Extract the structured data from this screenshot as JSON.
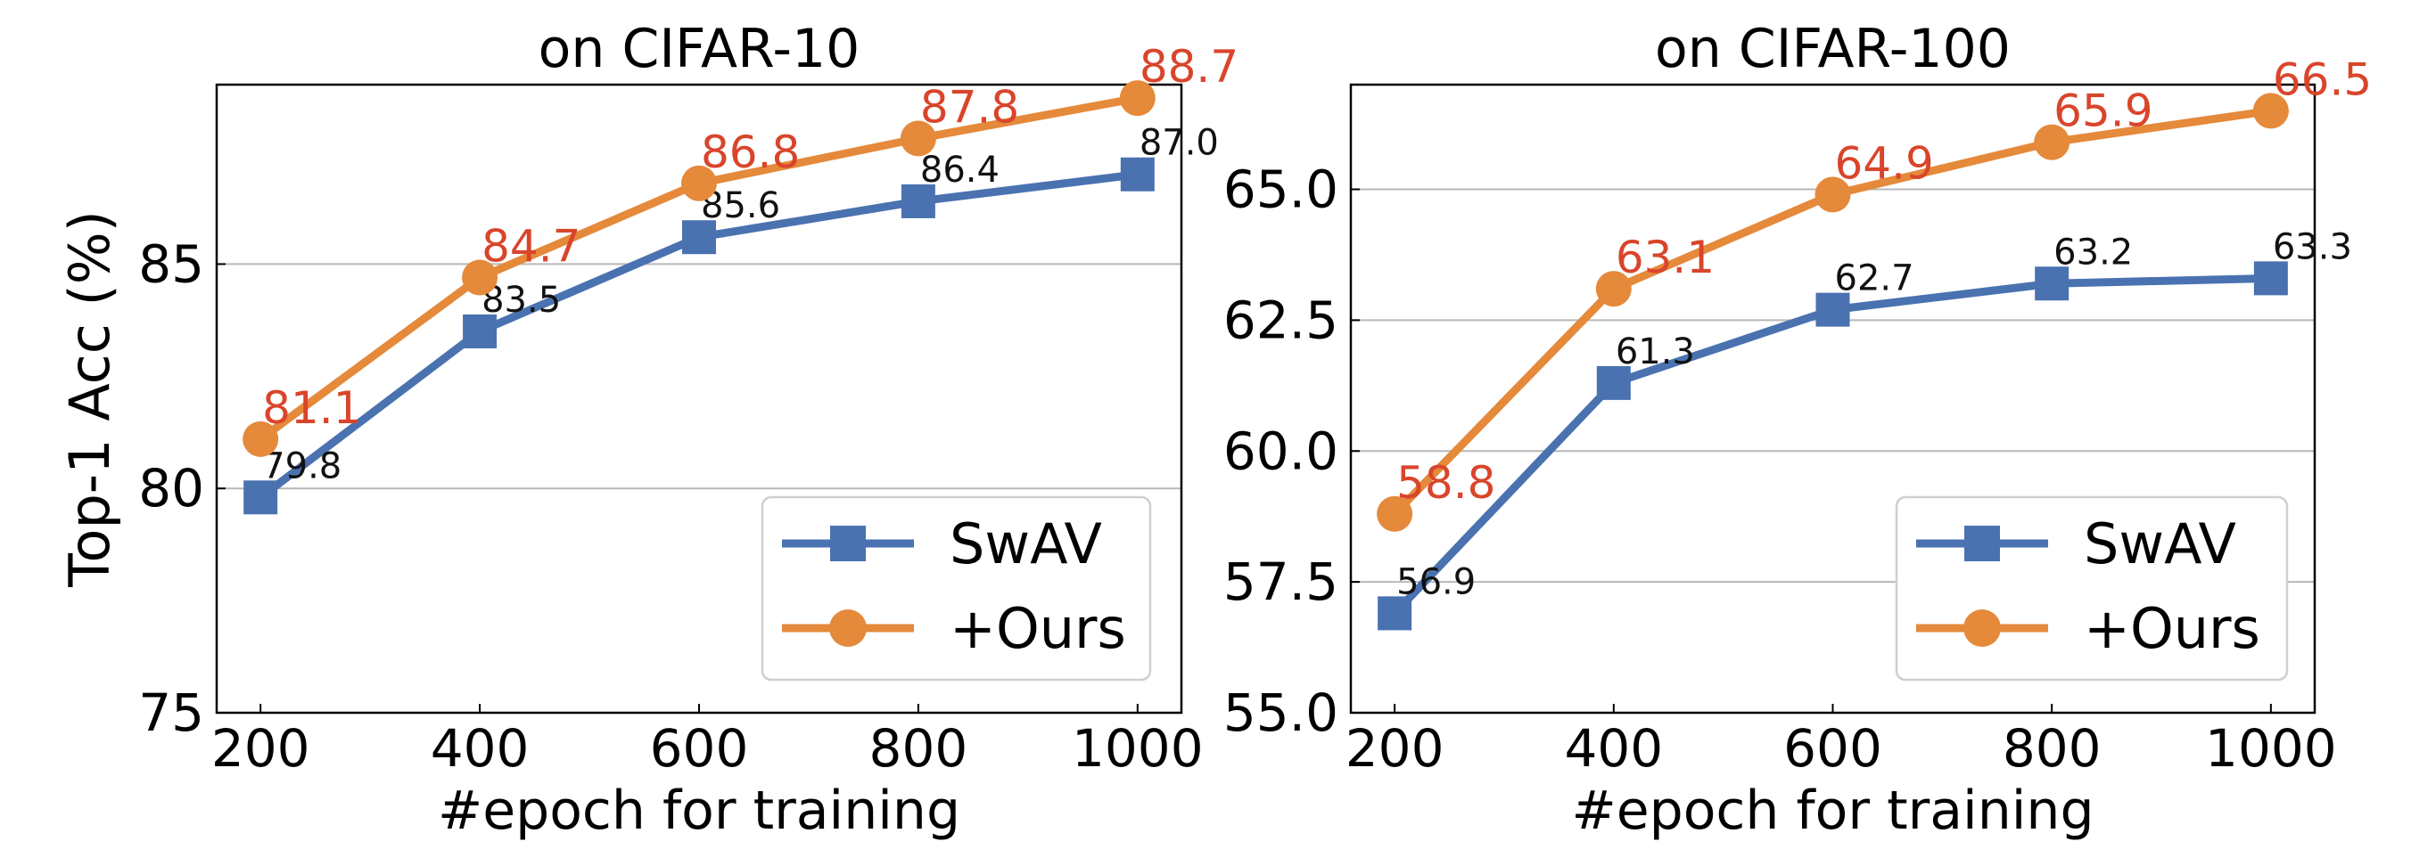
{
  "chart_data": [
    {
      "type": "line",
      "title": "on CIFAR-10",
      "xlabel": "#epoch for training",
      "ylabel": "Top-1 Acc (%)",
      "x": [
        200,
        400,
        600,
        800,
        1000
      ],
      "x_ticks": [
        "200",
        "400",
        "600",
        "800",
        "1000"
      ],
      "xlim": [
        160,
        1040
      ],
      "ylim": [
        75,
        89
      ],
      "y_ticks": [
        75,
        80,
        85
      ],
      "y_tick_labels": [
        "75",
        "80",
        "85"
      ],
      "grid": "horizontal",
      "legend_position": "lower-right",
      "series": [
        {
          "name": "SwAV",
          "color": "#4a72b0",
          "marker": "square",
          "values": [
            79.8,
            83.5,
            85.6,
            86.4,
            87.0
          ],
          "labels": [
            "79.8",
            "83.5",
            "85.6",
            "86.4",
            "87.0"
          ]
        },
        {
          "name": "+Ours",
          "color": "#e5893a",
          "marker": "circle",
          "values": [
            81.1,
            84.7,
            86.8,
            87.8,
            88.7
          ],
          "labels": [
            "81.1",
            "84.7",
            "86.8",
            "87.8",
            "88.7"
          ]
        }
      ]
    },
    {
      "type": "line",
      "title": "on CIFAR-100",
      "xlabel": "#epoch for training",
      "ylabel": "",
      "x": [
        200,
        400,
        600,
        800,
        1000
      ],
      "x_ticks": [
        "200",
        "400",
        "600",
        "800",
        "1000"
      ],
      "xlim": [
        160,
        1040
      ],
      "ylim": [
        55,
        67
      ],
      "y_ticks": [
        55,
        57.5,
        60,
        62.5,
        65
      ],
      "y_tick_labels": [
        "55.0",
        "57.5",
        "60.0",
        "62.5",
        "65.0"
      ],
      "grid": "horizontal",
      "legend_position": "lower-right",
      "series": [
        {
          "name": "SwAV",
          "color": "#4a72b0",
          "marker": "square",
          "values": [
            56.9,
            61.3,
            62.7,
            63.2,
            63.3
          ],
          "labels": [
            "56.9",
            "61.3",
            "62.7",
            "63.2",
            "63.3"
          ]
        },
        {
          "name": "+Ours",
          "color": "#e5893a",
          "marker": "circle",
          "values": [
            58.8,
            63.1,
            64.9,
            65.9,
            66.5
          ],
          "labels": [
            "58.8",
            "63.1",
            "64.9",
            "65.9",
            "66.5"
          ]
        }
      ]
    }
  ],
  "label_colors": {
    "SwAV": "#111111",
    "+Ours": "#d9452b"
  }
}
